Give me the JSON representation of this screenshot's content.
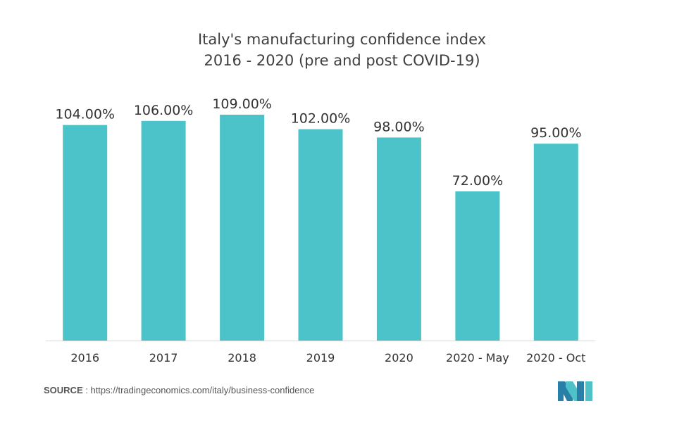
{
  "title_lines": [
    "Italy's manufacturing confidence index",
    "2016 - 2020 (pre and post COVID-19)"
  ],
  "source": {
    "key": "SOURCE",
    "separator": " : ",
    "text": "https://tradingeconomics.com/italy/business-confidence"
  },
  "logo": {
    "icon": "brand-logo-icon",
    "colors": [
      "#2a7fa8",
      "#4fc1c9"
    ]
  },
  "colors": {
    "bar": "#4cc3c9",
    "axis": "#d9d9d9",
    "text": "#333333"
  },
  "chart_data": {
    "type": "bar",
    "title": "Italy's manufacturing confidence index 2016 - 2020 (pre and post COVID-19)",
    "categories": [
      "2016",
      "2017",
      "2018",
      "2019",
      "2020",
      "2020 - May",
      "2020 - Oct"
    ],
    "values": [
      104.0,
      106.0,
      109.0,
      102.0,
      98.0,
      72.0,
      95.0
    ],
    "data_labels": [
      "104.00%",
      "106.00%",
      "109.00%",
      "102.00%",
      "98.00%",
      "72.00%",
      "95.00%"
    ],
    "xlabel": "",
    "ylabel": "",
    "ylim": [
      0,
      115
    ],
    "grid": false,
    "legend": "none"
  }
}
